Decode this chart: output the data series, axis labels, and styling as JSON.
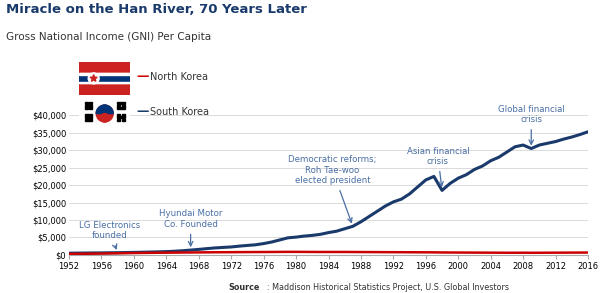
{
  "title": "Miracle on the Han River, 70 Years Later",
  "subtitle": "Gross National Income (GNI) Per Capita",
  "title_color": "#1a3a6b",
  "source_bold": "Source",
  "source_rest": ": Maddison Historical Statistics Project, U.S. Global Investors",
  "years": [
    1952,
    1953,
    1954,
    1955,
    1956,
    1957,
    1958,
    1959,
    1960,
    1961,
    1962,
    1963,
    1964,
    1965,
    1966,
    1967,
    1968,
    1969,
    1970,
    1971,
    1972,
    1973,
    1974,
    1975,
    1976,
    1977,
    1978,
    1979,
    1980,
    1981,
    1982,
    1983,
    1984,
    1985,
    1986,
    1987,
    1988,
    1989,
    1990,
    1991,
    1992,
    1993,
    1994,
    1995,
    1996,
    1997,
    1998,
    1999,
    2000,
    2001,
    2002,
    2003,
    2004,
    2005,
    2006,
    2007,
    2008,
    2009,
    2010,
    2011,
    2012,
    2013,
    2014,
    2015,
    2016
  ],
  "south_korea": [
    500,
    520,
    540,
    560,
    580,
    610,
    640,
    680,
    720,
    770,
    820,
    880,
    950,
    1050,
    1200,
    1380,
    1580,
    1800,
    2000,
    2150,
    2280,
    2520,
    2720,
    2900,
    3250,
    3700,
    4300,
    4900,
    5100,
    5400,
    5600,
    5900,
    6400,
    6800,
    7500,
    8200,
    9500,
    11000,
    12500,
    14000,
    15200,
    16000,
    17500,
    19500,
    21500,
    22500,
    18500,
    20500,
    22000,
    23000,
    24500,
    25500,
    27000,
    28000,
    29500,
    31000,
    31500,
    30500,
    31500,
    32000,
    32500,
    33200,
    33800,
    34500,
    35300
  ],
  "north_korea": [
    300,
    310,
    330,
    360,
    390,
    430,
    470,
    510,
    540,
    570,
    600,
    620,
    640,
    660,
    680,
    700,
    720,
    740,
    760,
    770,
    780,
    800,
    810,
    820,
    830,
    840,
    860,
    870,
    870,
    860,
    850,
    840,
    840,
    840,
    840,
    830,
    820,
    810,
    800,
    790,
    780,
    770,
    760,
    750,
    740,
    730,
    700,
    690,
    680,
    670,
    660,
    650,
    640,
    630,
    620,
    620,
    630,
    610,
    620,
    630,
    640,
    650,
    660,
    670,
    680
  ],
  "north_color": "#cc0000",
  "south_color": "#1a3a6b",
  "ylim": [
    0,
    42000
  ],
  "yticks": [
    0,
    5000,
    10000,
    15000,
    20000,
    25000,
    30000,
    35000,
    40000
  ],
  "ytick_labels": [
    "$0",
    "$5,000",
    "$10,000",
    "$15,000",
    "$20,000",
    "$25,000",
    "$30,000",
    "$35,000",
    "$40,000"
  ],
  "xticks": [
    1952,
    1956,
    1960,
    1964,
    1968,
    1972,
    1976,
    1980,
    1984,
    1988,
    1992,
    1996,
    2000,
    2004,
    2008,
    2012,
    2016
  ],
  "background_color": "#ffffff"
}
